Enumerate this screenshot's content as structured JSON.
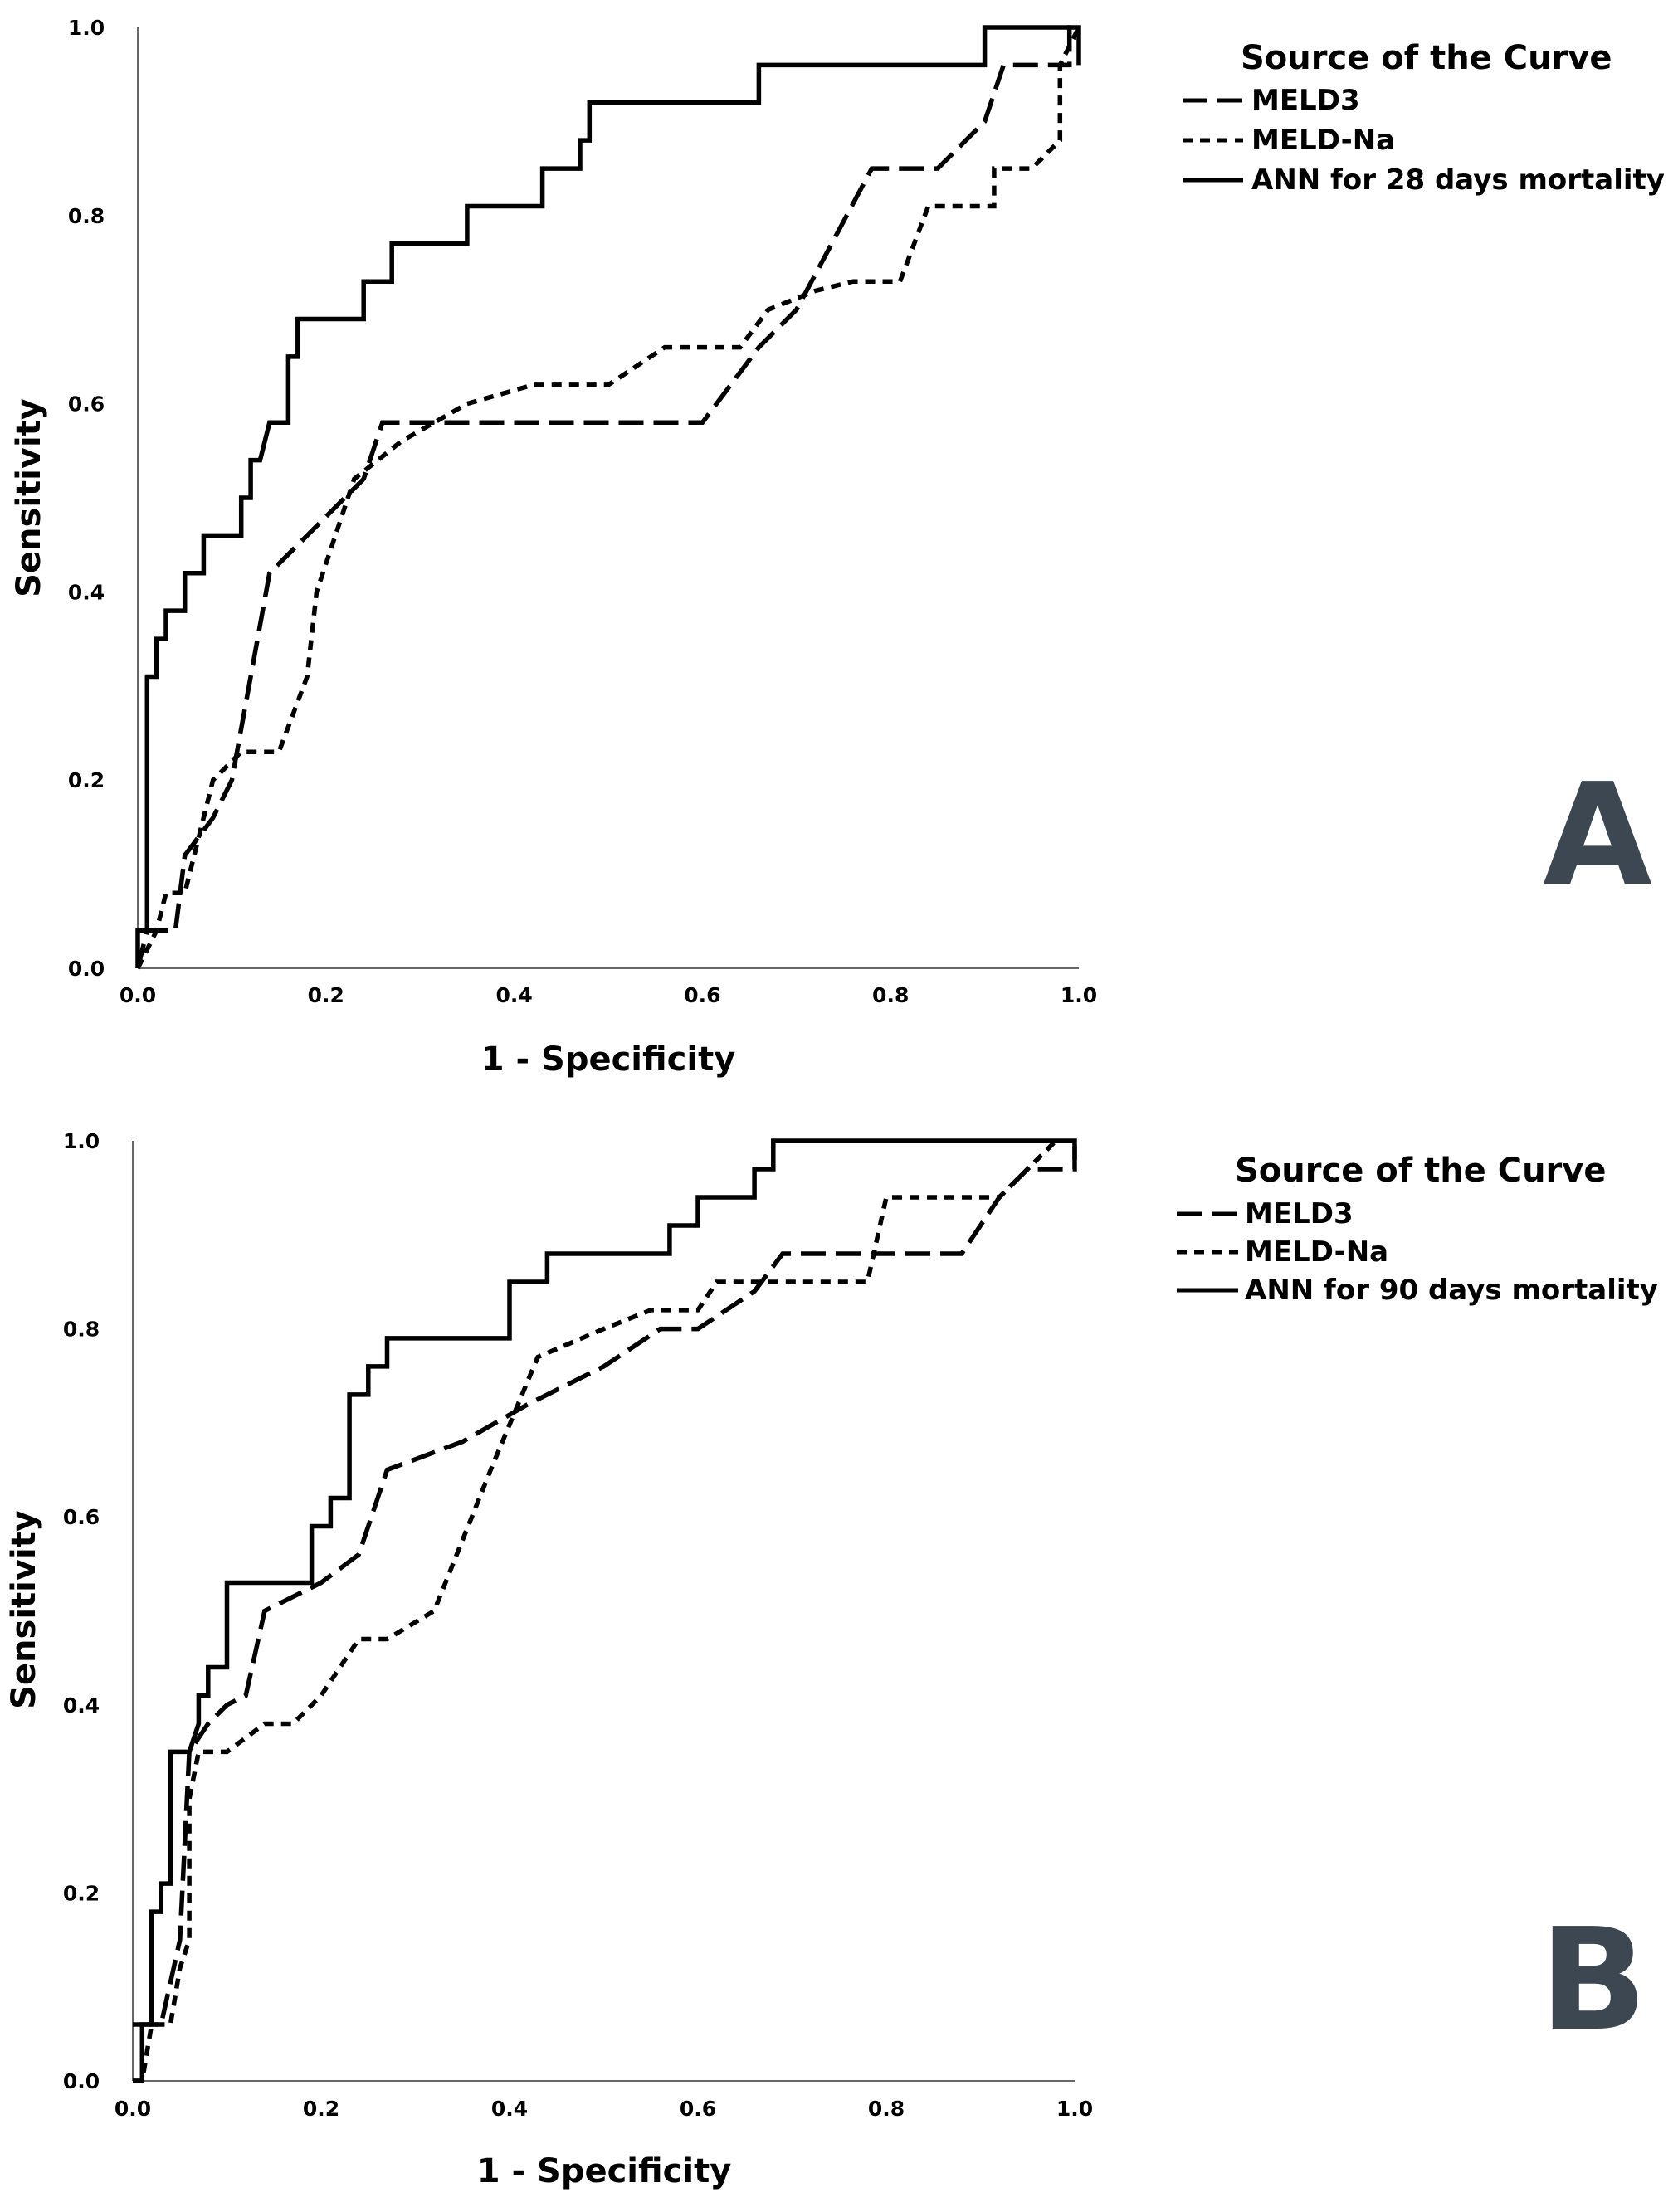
{
  "chart_data": [
    {
      "type": "line",
      "panel_label": "A",
      "xlabel": "1 - Specificity",
      "ylabel": "Sensitivity",
      "xlim": [
        0,
        1
      ],
      "ylim": [
        0,
        1
      ],
      "xticks": [
        "0.0",
        "0.2",
        "0.4",
        "0.6",
        "0.8",
        "1.0"
      ],
      "yticks": [
        "0.0",
        "0.2",
        "0.4",
        "0.6",
        "0.8",
        "1.0"
      ],
      "legend_title": "Source of the Curve",
      "legend_position": "top-right",
      "series": [
        {
          "name": "MELD3",
          "style": "dashed",
          "points": [
            [
              0,
              0
            ],
            [
              0.01,
              0.04
            ],
            [
              0.04,
              0.04
            ],
            [
              0.05,
              0.12
            ],
            [
              0.08,
              0.16
            ],
            [
              0.1,
              0.2
            ],
            [
              0.14,
              0.42
            ],
            [
              0.2,
              0.48
            ],
            [
              0.24,
              0.52
            ],
            [
              0.26,
              0.58
            ],
            [
              0.6,
              0.58
            ],
            [
              0.66,
              0.66
            ],
            [
              0.7,
              0.7
            ],
            [
              0.78,
              0.85
            ],
            [
              0.85,
              0.85
            ],
            [
              0.9,
              0.9
            ],
            [
              0.92,
              0.96
            ],
            [
              0.99,
              0.96
            ],
            [
              0.99,
              1
            ],
            [
              1,
              1
            ]
          ]
        },
        {
          "name": "MELD-Na",
          "style": "dotted",
          "points": [
            [
              0,
              0
            ],
            [
              0.02,
              0.04
            ],
            [
              0.03,
              0.08
            ],
            [
              0.05,
              0.08
            ],
            [
              0.06,
              0.12
            ],
            [
              0.08,
              0.2
            ],
            [
              0.11,
              0.23
            ],
            [
              0.15,
              0.23
            ],
            [
              0.18,
              0.31
            ],
            [
              0.19,
              0.4
            ],
            [
              0.23,
              0.52
            ],
            [
              0.28,
              0.56
            ],
            [
              0.35,
              0.6
            ],
            [
              0.42,
              0.62
            ],
            [
              0.5,
              0.62
            ],
            [
              0.56,
              0.66
            ],
            [
              0.64,
              0.66
            ],
            [
              0.67,
              0.7
            ],
            [
              0.72,
              0.72
            ],
            [
              0.76,
              0.73
            ],
            [
              0.81,
              0.73
            ],
            [
              0.84,
              0.81
            ],
            [
              0.91,
              0.81
            ],
            [
              0.91,
              0.85
            ],
            [
              0.95,
              0.85
            ],
            [
              0.98,
              0.88
            ],
            [
              0.98,
              0.96
            ],
            [
              1,
              1
            ]
          ]
        },
        {
          "name": "ANN for 28 days mortality",
          "style": "solid",
          "points": [
            [
              0,
              0
            ],
            [
              0,
              0.04
            ],
            [
              0.01,
              0.04
            ],
            [
              0.01,
              0.31
            ],
            [
              0.02,
              0.31
            ],
            [
              0.02,
              0.35
            ],
            [
              0.03,
              0.35
            ],
            [
              0.03,
              0.38
            ],
            [
              0.05,
              0.38
            ],
            [
              0.05,
              0.42
            ],
            [
              0.07,
              0.42
            ],
            [
              0.07,
              0.46
            ],
            [
              0.11,
              0.46
            ],
            [
              0.11,
              0.5
            ],
            [
              0.12,
              0.5
            ],
            [
              0.12,
              0.54
            ],
            [
              0.13,
              0.54
            ],
            [
              0.14,
              0.58
            ],
            [
              0.16,
              0.58
            ],
            [
              0.16,
              0.65
            ],
            [
              0.17,
              0.65
            ],
            [
              0.17,
              0.69
            ],
            [
              0.24,
              0.69
            ],
            [
              0.24,
              0.73
            ],
            [
              0.27,
              0.73
            ],
            [
              0.27,
              0.77
            ],
            [
              0.35,
              0.77
            ],
            [
              0.35,
              0.81
            ],
            [
              0.43,
              0.81
            ],
            [
              0.43,
              0.85
            ],
            [
              0.47,
              0.85
            ],
            [
              0.47,
              0.88
            ],
            [
              0.48,
              0.88
            ],
            [
              0.48,
              0.92
            ],
            [
              0.66,
              0.92
            ],
            [
              0.66,
              0.96
            ],
            [
              0.9,
              0.96
            ],
            [
              0.9,
              1
            ],
            [
              1,
              1
            ],
            [
              1,
              0.96
            ]
          ]
        }
      ]
    },
    {
      "type": "line",
      "panel_label": "B",
      "xlabel": "1 - Specificity",
      "ylabel": "Sensitivity",
      "xlim": [
        0,
        1
      ],
      "ylim": [
        0,
        1
      ],
      "xticks": [
        "0.0",
        "0.2",
        "0.4",
        "0.6",
        "0.8",
        "1.0"
      ],
      "yticks": [
        "0.0",
        "0.2",
        "0.4",
        "0.6",
        "0.8",
        "1.0"
      ],
      "legend_title": "Source of the Curve",
      "legend_position": "top-right",
      "series": [
        {
          "name": "MELD3",
          "style": "dashed",
          "points": [
            [
              0,
              0.06
            ],
            [
              0.02,
              0.06
            ],
            [
              0.03,
              0.06
            ],
            [
              0.05,
              0.15
            ],
            [
              0.06,
              0.35
            ],
            [
              0.08,
              0.38
            ],
            [
              0.1,
              0.4
            ],
            [
              0.12,
              0.41
            ],
            [
              0.14,
              0.5
            ],
            [
              0.2,
              0.53
            ],
            [
              0.24,
              0.56
            ],
            [
              0.27,
              0.65
            ],
            [
              0.35,
              0.68
            ],
            [
              0.42,
              0.72
            ],
            [
              0.5,
              0.76
            ],
            [
              0.56,
              0.8
            ],
            [
              0.6,
              0.8
            ],
            [
              0.66,
              0.84
            ],
            [
              0.69,
              0.88
            ],
            [
              0.88,
              0.88
            ],
            [
              0.92,
              0.94
            ],
            [
              0.95,
              0.97
            ],
            [
              1,
              0.97
            ],
            [
              1,
              1
            ]
          ]
        },
        {
          "name": "MELD-Na",
          "style": "dotted",
          "points": [
            [
              0,
              0
            ],
            [
              0.01,
              0
            ],
            [
              0.02,
              0.06
            ],
            [
              0.04,
              0.06
            ],
            [
              0.05,
              0.12
            ],
            [
              0.06,
              0.15
            ],
            [
              0.06,
              0.3
            ],
            [
              0.07,
              0.35
            ],
            [
              0.1,
              0.35
            ],
            [
              0.14,
              0.38
            ],
            [
              0.17,
              0.38
            ],
            [
              0.2,
              0.41
            ],
            [
              0.24,
              0.47
            ],
            [
              0.27,
              0.47
            ],
            [
              0.32,
              0.5
            ],
            [
              0.38,
              0.65
            ],
            [
              0.43,
              0.77
            ],
            [
              0.5,
              0.8
            ],
            [
              0.55,
              0.82
            ],
            [
              0.6,
              0.82
            ],
            [
              0.62,
              0.85
            ],
            [
              0.68,
              0.85
            ],
            [
              0.78,
              0.85
            ],
            [
              0.8,
              0.94
            ],
            [
              0.92,
              0.94
            ],
            [
              0.95,
              0.97
            ],
            [
              0.98,
              1
            ]
          ]
        },
        {
          "name": "ANN for 90 days mortality",
          "style": "solid",
          "points": [
            [
              0,
              0
            ],
            [
              0.01,
              0
            ],
            [
              0.01,
              0.06
            ],
            [
              0.02,
              0.06
            ],
            [
              0.02,
              0.18
            ],
            [
              0.03,
              0.18
            ],
            [
              0.03,
              0.21
            ],
            [
              0.04,
              0.21
            ],
            [
              0.04,
              0.35
            ],
            [
              0.06,
              0.35
            ],
            [
              0.07,
              0.38
            ],
            [
              0.07,
              0.41
            ],
            [
              0.08,
              0.41
            ],
            [
              0.08,
              0.44
            ],
            [
              0.1,
              0.44
            ],
            [
              0.1,
              0.53
            ],
            [
              0.19,
              0.53
            ],
            [
              0.19,
              0.59
            ],
            [
              0.21,
              0.59
            ],
            [
              0.21,
              0.62
            ],
            [
              0.23,
              0.62
            ],
            [
              0.23,
              0.73
            ],
            [
              0.25,
              0.73
            ],
            [
              0.25,
              0.76
            ],
            [
              0.27,
              0.76
            ],
            [
              0.27,
              0.79
            ],
            [
              0.4,
              0.79
            ],
            [
              0.4,
              0.85
            ],
            [
              0.44,
              0.85
            ],
            [
              0.44,
              0.88
            ],
            [
              0.57,
              0.88
            ],
            [
              0.57,
              0.91
            ],
            [
              0.6,
              0.91
            ],
            [
              0.6,
              0.94
            ],
            [
              0.66,
              0.94
            ],
            [
              0.66,
              0.97
            ],
            [
              0.68,
              0.97
            ],
            [
              0.68,
              1
            ],
            [
              1,
              1
            ],
            [
              1,
              0.98
            ]
          ]
        }
      ]
    }
  ]
}
